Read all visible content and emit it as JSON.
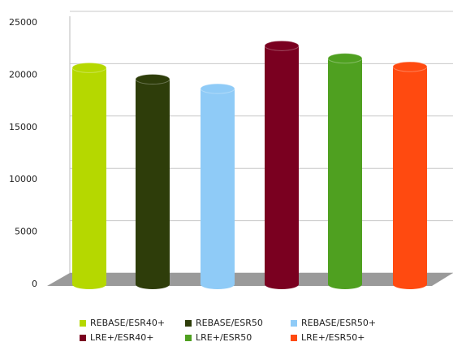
{
  "chart_data": {
    "type": "bar",
    "series": [
      {
        "name": "REBASE/ESR40+",
        "color": "#b5d800",
        "values": [
          20700
        ]
      },
      {
        "name": "REBASE/ESR50",
        "color": "#2e3d0a",
        "values": [
          19600
        ]
      },
      {
        "name": "REBASE/ESR50+",
        "color": "#8fcbf7",
        "values": [
          18700
        ]
      },
      {
        "name": "LRE+/ESR40+",
        "color": "#7a0020",
        "values": [
          22800
        ]
      },
      {
        "name": "LRE+/ESR50",
        "color": "#4fa020",
        "values": [
          21600
        ]
      },
      {
        "name": "LRE+/ESR50+",
        "color": "#ff4a10",
        "values": [
          20800
        ]
      }
    ],
    "ylim": [
      0,
      25000
    ],
    "yticks": [
      0,
      5000,
      10000,
      15000,
      20000,
      25000
    ],
    "grid": true
  }
}
